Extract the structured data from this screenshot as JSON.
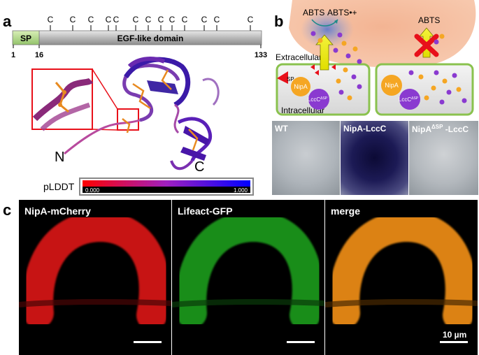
{
  "panel_a": {
    "label": "a",
    "domain_sp": "SP",
    "domain_egf": "EGF-like domain",
    "positions": [
      "1",
      "16",
      "133"
    ],
    "cysteine": "C",
    "n_term": "N",
    "c_term": "C",
    "plddt_label": "pLDDT",
    "plddt_min": "0.000",
    "plddt_max": "1.000"
  },
  "panel_b": {
    "label": "b",
    "abts": "ABTS",
    "abts_plus": "ABTS•+",
    "abts_right": "ABTS",
    "extracellular": "Extracellular",
    "intracellular": "Intracellular",
    "sp": "SP",
    "nipa_left": "NipA",
    "lccc_left": "LccC",
    "lccc_left_sup": "ΔSP",
    "nipa_right": "NipA",
    "lccc_right": "LccC",
    "lccc_right_sup": "ΔSP",
    "plates": [
      {
        "label": "WT"
      },
      {
        "label": "NipA-LccC"
      },
      {
        "label_main": "NipA",
        "label_sup": "ΔSP",
        "label_rest": " -LccC"
      }
    ]
  },
  "panel_c": {
    "label": "c",
    "images": [
      "NipA-mCherry",
      "Lifeact-GFP",
      "merge"
    ],
    "scale": "10 µm"
  }
}
